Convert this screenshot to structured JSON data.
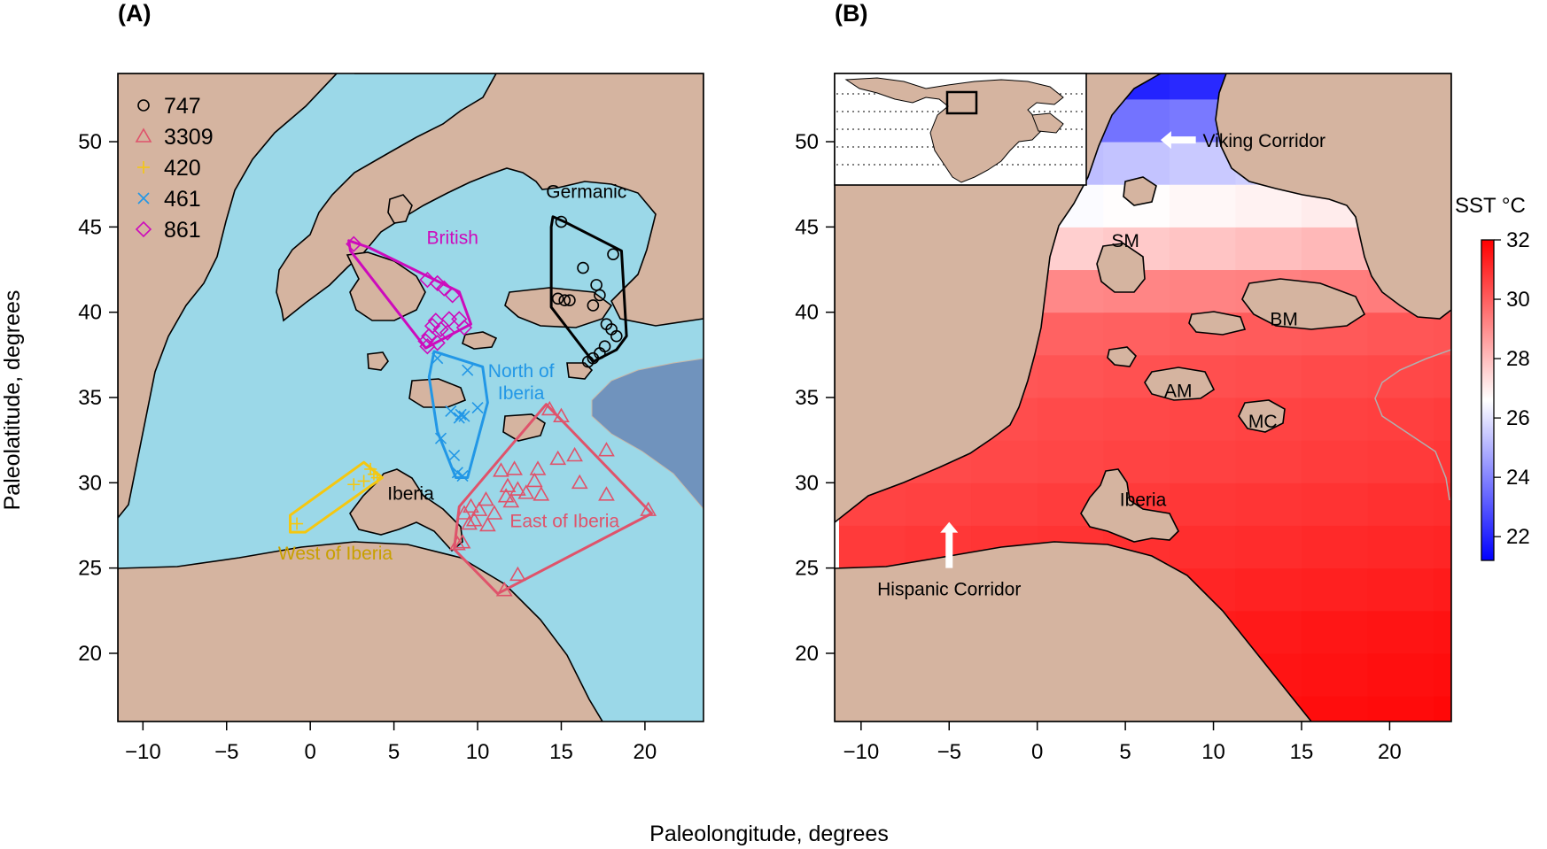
{
  "figure": {
    "xlabel": "Paleolongitude, degrees",
    "ylabel": "Paleolatitude, degrees"
  },
  "colors": {
    "land": "#d5b4a0",
    "sea": "#9bd8e8",
    "deep_sea": "#7093bd",
    "frame": "#000000"
  },
  "chart_data": [
    {
      "type": "scatter",
      "panel_label": "(A)",
      "xlim": [
        -11.5,
        23.5
      ],
      "ylim": [
        16,
        54
      ],
      "xticks": [
        -10,
        -5,
        0,
        5,
        10,
        15,
        20
      ],
      "yticks": [
        20,
        25,
        30,
        35,
        40,
        45,
        50
      ],
      "xtick_labels": [
        "−10",
        "−5",
        "0",
        "5",
        "10",
        "15",
        "20"
      ],
      "ytick_labels": [
        "20",
        "25",
        "30",
        "35",
        "40",
        "45",
        "50"
      ],
      "legend_position": "top-left",
      "legend": [
        {
          "label": "747",
          "marker": "circle",
          "color": "#000000"
        },
        {
          "label": "3309",
          "marker": "triangle",
          "color": "#df536b"
        },
        {
          "label": "420",
          "marker": "plus",
          "color": "#f5c710"
        },
        {
          "label": "461",
          "marker": "cross",
          "color": "#2297e6"
        },
        {
          "label": "861",
          "marker": "diamond",
          "color": "#cd0bbc"
        }
      ],
      "groups": [
        {
          "name": "Germanic",
          "marker": "circle",
          "color": "#000000",
          "label_at": [
            16.5,
            46.7
          ],
          "hull": [
            [
              14.5,
              45.6
            ],
            [
              15.2,
              45.3
            ],
            [
              18.6,
              43.6
            ],
            [
              18.9,
              38.6
            ],
            [
              18.3,
              37.8
            ],
            [
              16.9,
              37.1
            ],
            [
              14.4,
              40.3
            ],
            [
              14.4,
              45.0
            ]
          ],
          "points": [
            [
              15.0,
              45.3
            ],
            [
              16.3,
              42.6
            ],
            [
              17.1,
              41.6
            ],
            [
              18.1,
              43.4
            ],
            [
              16.9,
              40.4
            ],
            [
              17.3,
              41.0
            ],
            [
              14.8,
              40.8
            ],
            [
              15.2,
              40.7
            ],
            [
              15.5,
              40.7
            ],
            [
              17.7,
              39.3
            ],
            [
              18.0,
              39.0
            ],
            [
              18.3,
              38.6
            ],
            [
              17.6,
              38.0
            ],
            [
              17.3,
              37.6
            ],
            [
              16.9,
              37.3
            ],
            [
              16.6,
              37.1
            ]
          ]
        },
        {
          "name": "British",
          "marker": "diamond",
          "color": "#cd0bbc",
          "label_at": [
            8.5,
            44.0
          ],
          "hull": [
            [
              2.3,
              44.2
            ],
            [
              3.5,
              43.8
            ],
            [
              8.9,
              41.2
            ],
            [
              9.6,
              39.3
            ],
            [
              6.9,
              37.9
            ],
            [
              2.4,
              43.6
            ]
          ],
          "points": [
            [
              2.6,
              44.0
            ],
            [
              7.0,
              41.9
            ],
            [
              7.6,
              41.7
            ],
            [
              8.0,
              41.4
            ],
            [
              8.5,
              41.0
            ],
            [
              8.3,
              39.6
            ],
            [
              7.3,
              39.2
            ],
            [
              7.8,
              39.0
            ],
            [
              7.1,
              38.6
            ],
            [
              7.6,
              38.2
            ],
            [
              7.0,
              38.0
            ],
            [
              8.9,
              39.6
            ],
            [
              9.2,
              39.1
            ],
            [
              8.2,
              38.8
            ],
            [
              7.5,
              39.5
            ],
            [
              6.9,
              38.3
            ]
          ]
        },
        {
          "name": "North of Iberia",
          "label_lines": [
            "North of",
            "Iberia"
          ],
          "marker": "cross",
          "color": "#2297e6",
          "label_at": [
            12.6,
            36.2
          ],
          "hull": [
            [
              7.4,
              37.7
            ],
            [
              10.3,
              36.8
            ],
            [
              10.6,
              34.7
            ],
            [
              9.4,
              30.3
            ],
            [
              8.7,
              30.3
            ],
            [
              7.6,
              33.0
            ],
            [
              7.1,
              36.2
            ]
          ],
          "points": [
            [
              7.6,
              37.3
            ],
            [
              9.4,
              36.6
            ],
            [
              10.0,
              34.4
            ],
            [
              8.9,
              33.8
            ],
            [
              9.2,
              33.9
            ],
            [
              9.0,
              34.0
            ],
            [
              8.4,
              34.2
            ],
            [
              7.8,
              32.6
            ],
            [
              8.6,
              31.6
            ],
            [
              8.8,
              30.6
            ],
            [
              9.1,
              30.4
            ]
          ]
        },
        {
          "name": "West of Iberia",
          "marker": "plus",
          "color": "#f5c710",
          "label_at": [
            1.5,
            25.5
          ],
          "hull": [
            [
              -1.2,
              28.1
            ],
            [
              3.2,
              31.2
            ],
            [
              4.3,
              30.3
            ],
            [
              -0.3,
              27.1
            ],
            [
              -1.2,
              27.1
            ]
          ],
          "points": [
            [
              -0.8,
              27.6
            ],
            [
              3.6,
              30.8
            ],
            [
              4.0,
              30.3
            ],
            [
              3.2,
              30.1
            ],
            [
              2.6,
              29.9
            ],
            [
              3.8,
              30.5
            ]
          ]
        },
        {
          "name": "East of Iberia",
          "marker": "triangle",
          "color": "#df536b",
          "label_at": [
            15.2,
            27.4
          ],
          "hull": [
            [
              14.1,
              34.6
            ],
            [
              20.4,
              28.2
            ],
            [
              11.2,
              23.5
            ],
            [
              8.6,
              26.1
            ],
            [
              8.9,
              28.6
            ]
          ],
          "points": [
            [
              14.3,
              34.3
            ],
            [
              15.0,
              33.9
            ],
            [
              17.7,
              31.9
            ],
            [
              15.8,
              31.6
            ],
            [
              11.4,
              30.7
            ],
            [
              12.2,
              30.8
            ],
            [
              13.6,
              30.8
            ],
            [
              11.8,
              29.8
            ],
            [
              12.4,
              29.6
            ],
            [
              12.9,
              29.4
            ],
            [
              11.7,
              29.2
            ],
            [
              13.8,
              29.3
            ],
            [
              12.0,
              28.9
            ],
            [
              10.5,
              29.0
            ],
            [
              9.6,
              28.6
            ],
            [
              10.1,
              28.4
            ],
            [
              9.2,
              28.2
            ],
            [
              10.6,
              27.5
            ],
            [
              9.8,
              27.8
            ],
            [
              17.7,
              29.3
            ],
            [
              20.2,
              28.4
            ],
            [
              8.8,
              26.4
            ],
            [
              9.1,
              26.5
            ],
            [
              12.4,
              24.6
            ],
            [
              11.6,
              23.7
            ],
            [
              14.8,
              31.4
            ],
            [
              16.1,
              30.0
            ],
            [
              13.4,
              30.1
            ],
            [
              11.0,
              28.2
            ],
            [
              9.5,
              27.6
            ]
          ]
        },
        {
          "name": "Iberia",
          "marker": "none",
          "color": "#000000",
          "label_at": [
            6.0,
            29.0
          ],
          "hull": [],
          "points": []
        }
      ]
    },
    {
      "type": "heatmap",
      "panel_label": "(B)",
      "xlim": [
        -11.5,
        23.5
      ],
      "ylim": [
        16,
        54
      ],
      "xticks": [
        -10,
        -5,
        0,
        5,
        10,
        15,
        20
      ],
      "yticks": [
        20,
        25,
        30,
        35,
        40,
        45,
        50
      ],
      "xtick_labels": [
        "−10",
        "−5",
        "0",
        "5",
        "10",
        "15",
        "20"
      ],
      "ytick_labels": [
        "20",
        "25",
        "30",
        "35",
        "40",
        "45",
        "50"
      ],
      "colorbar": {
        "title": "SST °C",
        "range": [
          21.2,
          32
        ],
        "ticks": [
          22,
          24,
          26,
          28,
          30,
          32
        ],
        "tick_labels": [
          "22",
          "24",
          "26",
          "28",
          "30",
          "32"
        ],
        "colors": [
          "#0000ff",
          "#ffffff",
          "#ff0000"
        ],
        "midpoint": 26.6
      },
      "grid": {
        "lon_start": -11.25,
        "lon_step": 3.75,
        "cols": 10,
        "lat_start": 15.0,
        "lat_step": 2.5,
        "rows": 16,
        "row_sst": [
          31.6,
          31.5,
          31.4,
          31.2,
          31.0,
          30.8,
          30.6,
          30.5,
          30.3,
          30.0,
          29.2,
          27.8,
          26.7,
          25.4,
          23.7,
          22.0
        ]
      },
      "labels": [
        {
          "text": "SM",
          "at": [
            5.0,
            44.2
          ]
        },
        {
          "text": "BM",
          "at": [
            14.0,
            39.6
          ]
        },
        {
          "text": "AM",
          "at": [
            8.0,
            35.4
          ]
        },
        {
          "text": "MC",
          "at": [
            12.8,
            33.6
          ]
        },
        {
          "text": "Iberia",
          "at": [
            6.0,
            29.0
          ]
        }
      ],
      "annotations": [
        {
          "text": "Viking Corridor",
          "at": [
            10.0,
            50.1
          ],
          "arrow": "left",
          "arrow_from": [
            9.0,
            50.1
          ],
          "arrow_to": [
            7.0,
            50.1
          ]
        },
        {
          "text": "Hispanic Corridor",
          "at": [
            -5.0,
            23.8
          ],
          "arrow": "up",
          "arrow_from": [
            -5.0,
            25.0
          ],
          "arrow_to": [
            -5.0,
            27.7
          ]
        }
      ]
    }
  ]
}
